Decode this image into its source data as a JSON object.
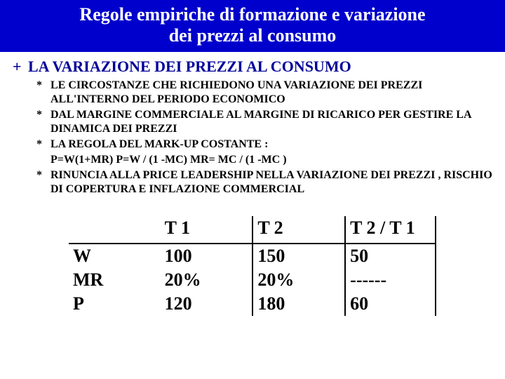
{
  "title_line1": "Regole empiriche di formazione e variazione",
  "title_line2": "dei prezzi al consumo",
  "level1": {
    "bullet": "+",
    "text": "LA VARIAZIONE DEI PREZZI  AL CONSUMO"
  },
  "bullets": {
    "b1": "LE CIRCOSTANZE CHE RICHIEDONO UNA VARIAZIONE DEI PREZZI ALL'INTERNO DEL PERIODO ECONOMICO",
    "b2": "DAL MARGINE  COMMERCIALE AL MARGINE DI RICARICO PER GESTIRE LA DINAMICA DEI PREZZI",
    "b3": "LA REGOLA DEL MARK-UP COSTANTE  :",
    "formula": "P=W(1+MR)  P=W / (1 -MC)    MR= MC / (1 -MC )",
    "b4": "RINUNCIA ALLA PRICE LEADERSHIP NELLA VARIAZIONE DEI PREZZI , RISCHIO DI COPERTURA E INFLAZIONE COMMERCIAL",
    "asterisk": "*"
  },
  "table": {
    "headers": {
      "c0": "",
      "c1": "T 1",
      "c2": "T 2",
      "c3": "T 2 / T 1"
    },
    "rows": [
      {
        "label": "W",
        "t1": "100",
        "t2": "150",
        "ratio": " 50"
      },
      {
        "label": "MR",
        "t1": " 20%",
        "t2": "20%",
        "ratio": "------"
      },
      {
        "label": "P",
        "t1": "120",
        "t2": "180",
        "ratio": " 60"
      }
    ]
  },
  "colors": {
    "title_bg": "#0000cc",
    "title_fg": "#ffffff",
    "level1_fg": "#000099",
    "body_fg": "#000000",
    "page_bg": "#ffffff"
  }
}
